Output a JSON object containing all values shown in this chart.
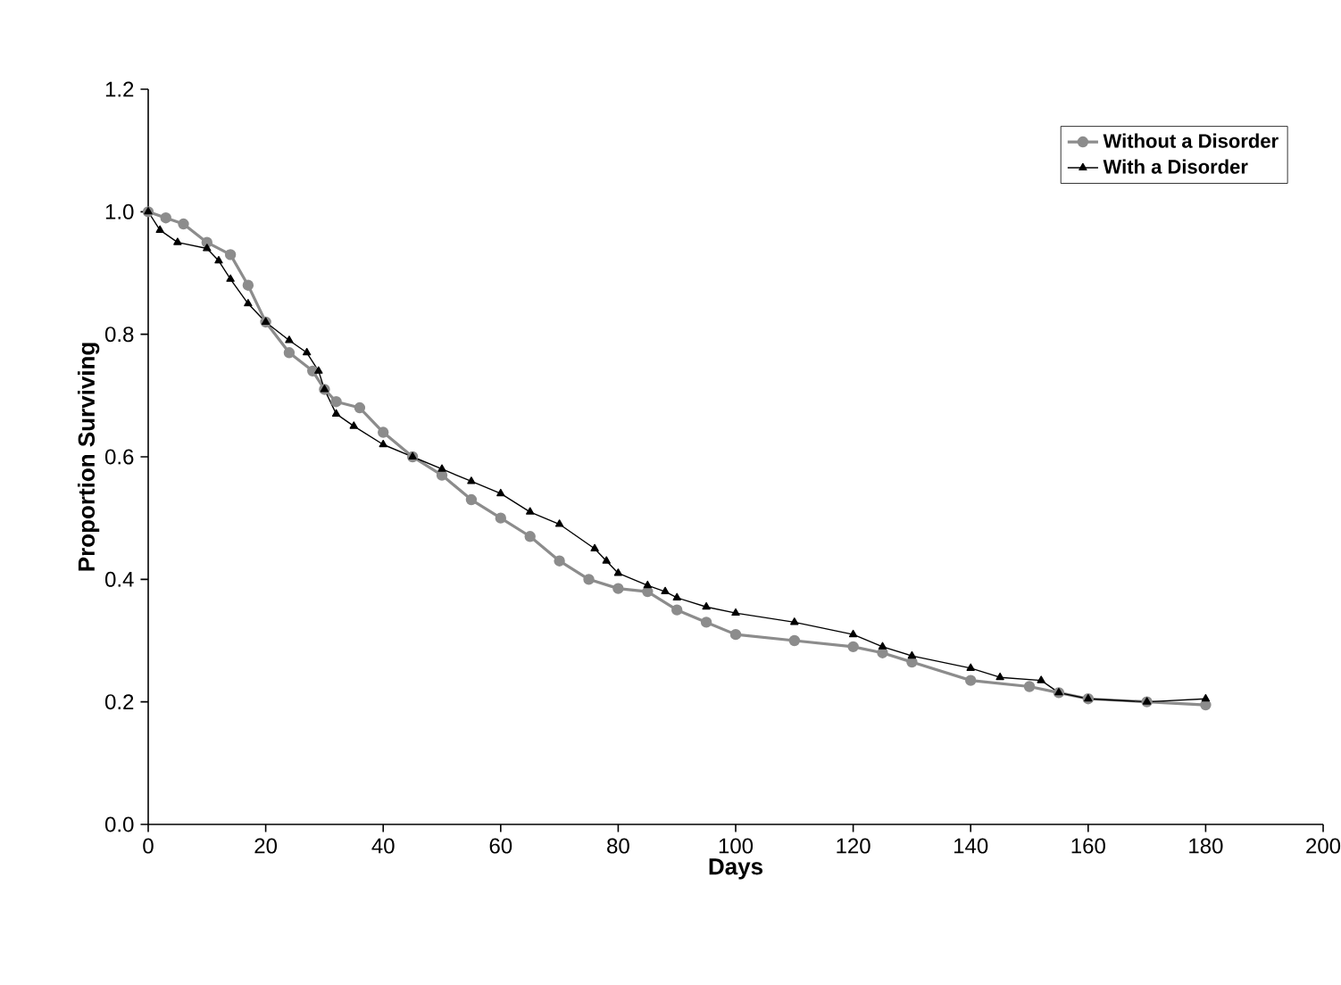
{
  "chart_data": {
    "type": "line",
    "xlabel": "Days",
    "ylabel": "Proportion Surviving",
    "xlim": [
      0,
      200
    ],
    "xticks": [
      0,
      20,
      40,
      60,
      80,
      100,
      120,
      140,
      160,
      180,
      200
    ],
    "ylim": [
      0,
      1.2
    ],
    "yticks": [
      {
        "value": 0,
        "label": "0.0"
      },
      {
        "value": 0.2,
        "label": "0.2"
      },
      {
        "value": 0.4,
        "label": "0.4"
      },
      {
        "value": 0.6,
        "label": "0.6"
      },
      {
        "value": 0.8,
        "label": "0.8"
      },
      {
        "value": 1,
        "label": "1.0"
      },
      {
        "value": 1.2,
        "label": "1.2"
      }
    ],
    "grid": false,
    "legend": "top right",
    "series": [
      {
        "name": "Without a Disorder",
        "color": "#8c8c8c",
        "marker": "circle",
        "x": [
          0,
          3,
          6,
          10,
          14,
          17,
          20,
          24,
          28,
          30,
          32,
          36,
          40,
          45,
          50,
          55,
          60,
          65,
          70,
          75,
          80,
          85,
          90,
          95,
          100,
          110,
          120,
          125,
          130,
          140,
          150,
          155,
          160,
          170,
          180
        ],
        "values": [
          1.0,
          0.99,
          0.98,
          0.95,
          0.93,
          0.88,
          0.82,
          0.77,
          0.74,
          0.71,
          0.69,
          0.68,
          0.64,
          0.6,
          0.57,
          0.53,
          0.5,
          0.47,
          0.43,
          0.4,
          0.385,
          0.38,
          0.35,
          0.33,
          0.31,
          0.3,
          0.29,
          0.28,
          0.265,
          0.235,
          0.225,
          0.215,
          0.205,
          0.2,
          0.195
        ]
      },
      {
        "name": "With a Disorder",
        "color": "#000000",
        "marker": "triangle",
        "x": [
          0,
          2,
          5,
          10,
          12,
          14,
          17,
          20,
          24,
          27,
          29,
          30,
          32,
          35,
          40,
          45,
          50,
          55,
          60,
          65,
          70,
          76,
          78,
          80,
          85,
          88,
          90,
          95,
          100,
          110,
          120,
          125,
          130,
          140,
          145,
          152,
          155,
          160,
          170,
          180
        ],
        "values": [
          1.0,
          0.97,
          0.95,
          0.94,
          0.92,
          0.89,
          0.85,
          0.82,
          0.79,
          0.77,
          0.74,
          0.71,
          0.67,
          0.65,
          0.62,
          0.6,
          0.58,
          0.56,
          0.54,
          0.51,
          0.49,
          0.45,
          0.43,
          0.41,
          0.39,
          0.38,
          0.37,
          0.355,
          0.345,
          0.33,
          0.31,
          0.29,
          0.275,
          0.255,
          0.24,
          0.235,
          0.215,
          0.205,
          0.2,
          0.205
        ]
      }
    ]
  }
}
